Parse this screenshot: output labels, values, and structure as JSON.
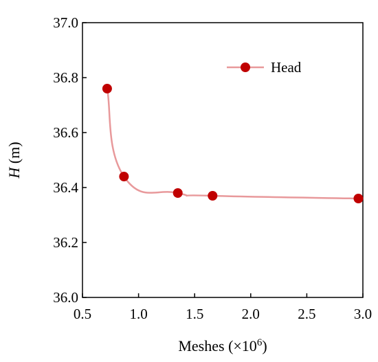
{
  "chart_data": {
    "type": "line",
    "title": "",
    "xlabel": "Meshes (×10",
    "xlabel_sup": "6",
    "xlabel_close": ")",
    "ylabel_var": "H",
    "ylabel_unit": " (m)",
    "xlim": [
      0.5,
      3.0
    ],
    "ylim": [
      36.0,
      37.0
    ],
    "x_ticks": [
      "0.5",
      "1.0",
      "1.5",
      "2.0",
      "2.5",
      "3.0"
    ],
    "y_ticks": [
      "36.0",
      "36.2",
      "36.4",
      "36.6",
      "36.8",
      "37.0"
    ],
    "grid": false,
    "legend_position": "top-right",
    "series": [
      {
        "name": "Head",
        "line_color": "#e8999b",
        "marker_color": "#c00000",
        "smooth": true,
        "points": [
          {
            "x": 0.72,
            "y": 36.76
          },
          {
            "x": 0.87,
            "y": 36.44
          },
          {
            "x": 1.35,
            "y": 36.38
          },
          {
            "x": 1.66,
            "y": 36.37
          },
          {
            "x": 2.96,
            "y": 36.36
          }
        ]
      }
    ]
  }
}
